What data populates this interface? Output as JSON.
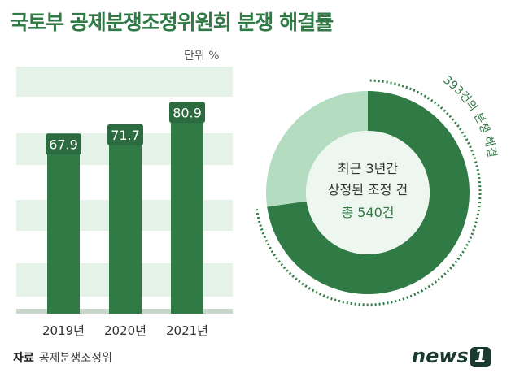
{
  "header": {
    "title": "국토부 공제분쟁조정위원회 분쟁 해결률"
  },
  "footer": {
    "source_label": "자료",
    "source_value": "공제분쟁조정위"
  },
  "logo": {
    "text": "news",
    "badge": "1"
  },
  "colors": {
    "title": "#2f7a45",
    "bar": "#2f7a45",
    "bar_cap": "#2c6a3f",
    "band": "#e4f2e8",
    "donut_dark": "#2f7a45",
    "donut_light": "#b3dcc0",
    "donut_center": "#eef6f0"
  },
  "chart_data": [
    {
      "type": "bar",
      "categories": [
        "2019년",
        "2020년",
        "2021년"
      ],
      "values": [
        67.9,
        71.7,
        80.9
      ],
      "value_labels": [
        "67.9",
        "71.7",
        "80.9"
      ],
      "unit_label": "단위  %",
      "title": "",
      "xlabel": "",
      "ylabel": ""
    },
    {
      "type": "pie",
      "total": 540,
      "slices": [
        {
          "value": 393,
          "label": "393건의 분쟁 해결"
        },
        {
          "value": 147,
          "label": ""
        }
      ],
      "center_line1": "최근 3년간",
      "center_line2": "상정된 조정 건",
      "center_line3": "총 540건"
    }
  ]
}
